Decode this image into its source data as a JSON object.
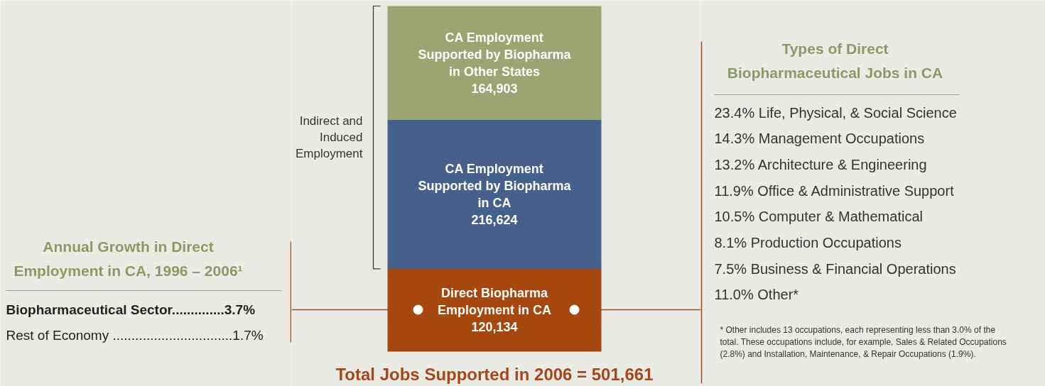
{
  "chart_data": [
    {
      "type": "other",
      "title": "Annual Growth in Direct Employment in CA, 1996 – 2006¹",
      "annotations": [
        "Biopharmaceutical Sector..............3.7%",
        "Rest of Economy ................................1.7%"
      ]
    },
    {
      "type": "bar",
      "stacked": true,
      "data_labels": true,
      "title": "Total Jobs Supported in 2006 = 501,661",
      "categories": [
        null
      ],
      "series": [
        {
          "name": "Direct Biopharma Employment in CA",
          "color": "#a6470f",
          "values": [
            120134
          ],
          "value_labels": [
            "120,134"
          ]
        },
        {
          "name": "CA Employment Supported by Biopharma in CA",
          "color": "#46608c",
          "values": [
            216624
          ],
          "value_labels": [
            "216,624"
          ]
        },
        {
          "name": "CA Employment Supported by Biopharma in Other States",
          "color": "#9ca572",
          "values": [
            164903
          ],
          "value_labels": [
            "164,903"
          ]
        }
      ],
      "annotations": [
        "Indirect and Induced Employment"
      ]
    },
    {
      "type": "other",
      "title": "Types of Direct Biopharmaceutical Jobs in CA",
      "annotations": [
        "23.4%  Life, Physical, & Social Science",
        "14.3%  Management Occupations",
        "13.2%  Architecture & Engineering",
        "11.9%  Office & Administrative Support",
        "10.5%  Computer & Mathematical",
        "  8.1%  Production Occupations",
        "  7.5%  Business & Financial Operations",
        "11.0%  Other*",
        "* Other includes 13 occupations, each representing less than 3.0% of the total. These occupations include, for example, Sales & Related Occupations (2.8%) and Installation, Maintenance, & Repair Occupations (1.9%)."
      ]
    }
  ]
}
